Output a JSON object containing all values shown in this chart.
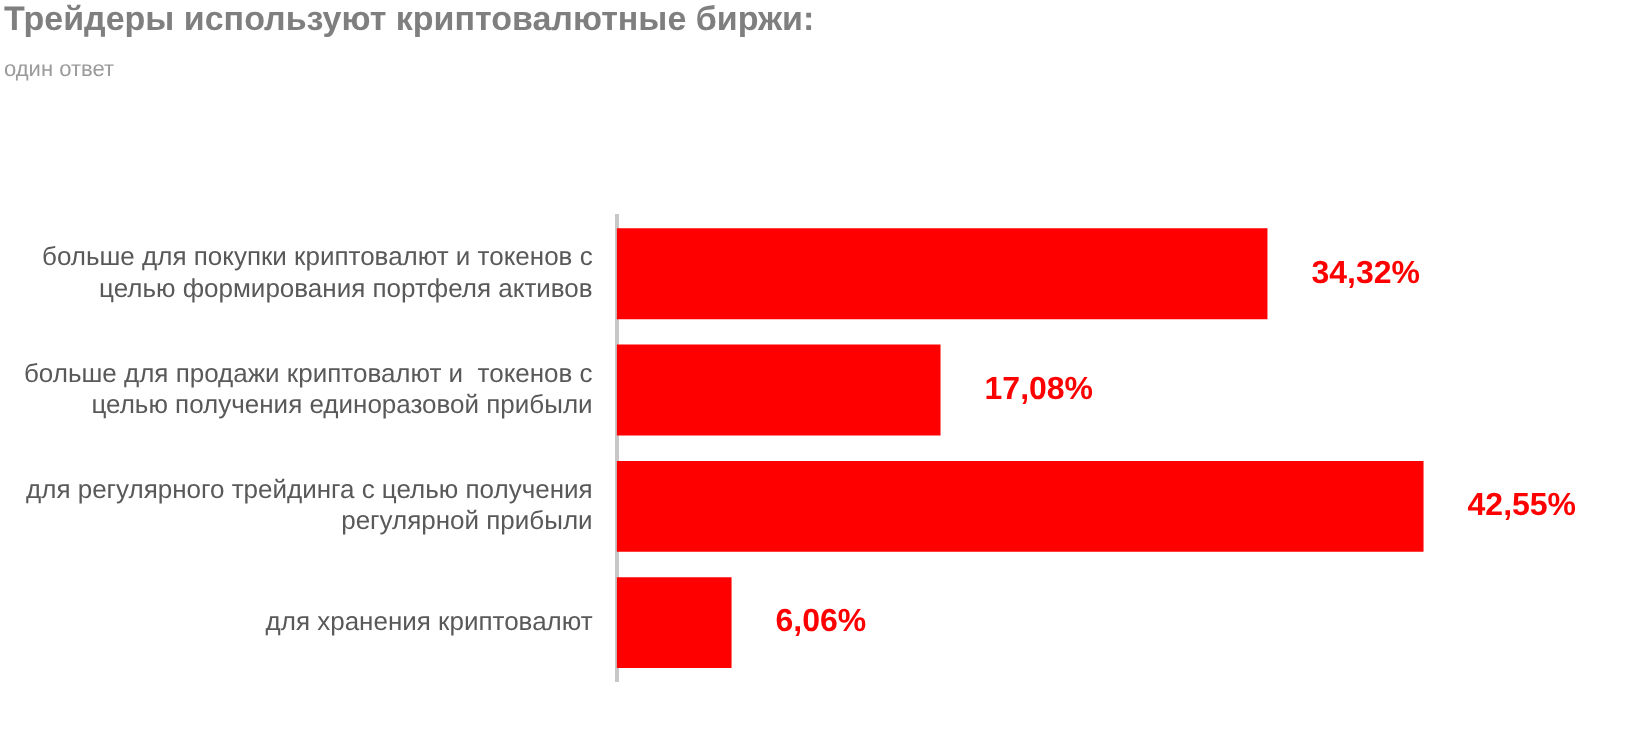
{
  "chart_data": {
    "type": "bar",
    "orientation": "horizontal",
    "title": "Трейдеры используют криптовалютные биржи:",
    "subtitle": "один ответ",
    "categories": [
      "больше для покупки криптовалют и токенов с целью формирования портфеля активов",
      "больше для продажи криптовалют и  токенов с целью получения единоразовой прибыли",
      "для регулярного трейдинга с целью получения регулярной прибыли",
      "для хранения криптовалют"
    ],
    "values": [
      34.32,
      17.08,
      42.55,
      6.06
    ],
    "value_labels": [
      "34,32%",
      "17,08%",
      "42,55%",
      "6,06%"
    ],
    "color": "#ff0000",
    "legend": false,
    "tick_labels": "y"
  }
}
